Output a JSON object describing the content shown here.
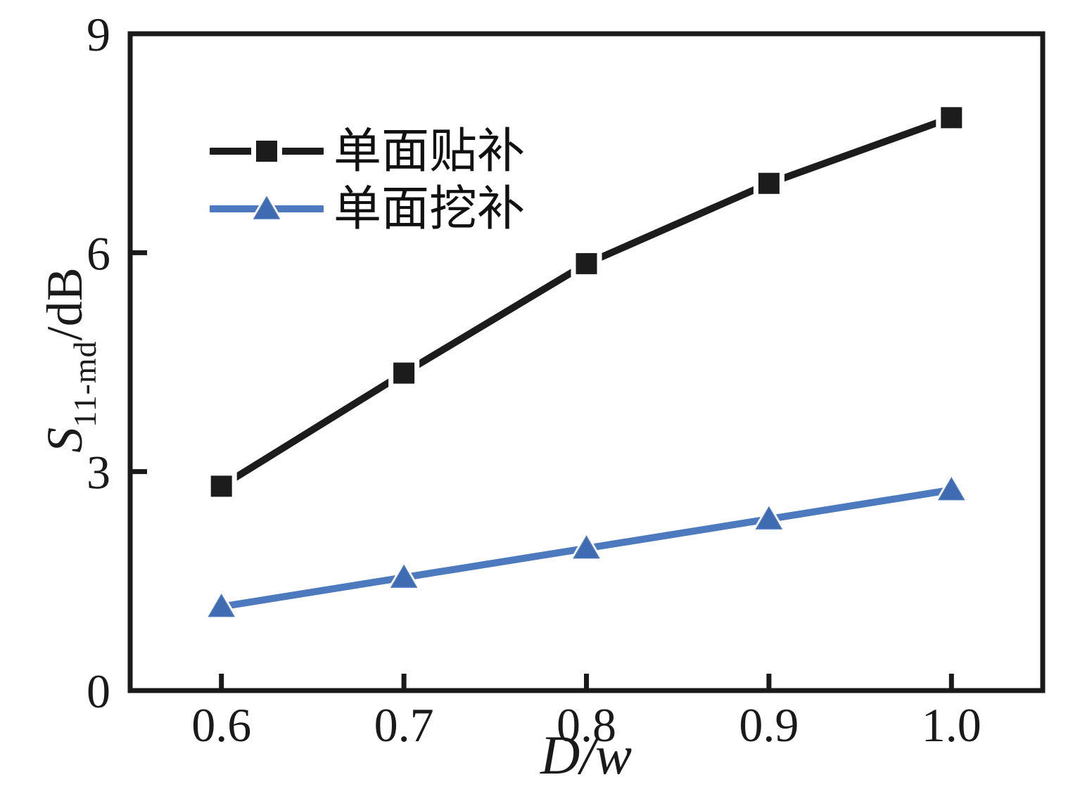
{
  "figure": {
    "background": "#ffffff",
    "axis_color": "#1a1a1a",
    "text_color": "#1a1a1a"
  },
  "chart_data": {
    "type": "line",
    "title": "",
    "xlabel": "D/w",
    "ylabel": {
      "main": "S",
      "sub": "11-md",
      "unit": "/dB",
      "full_text": "S11-md/dB"
    },
    "xlim": [
      0.55,
      1.05
    ],
    "ylim": [
      0,
      9
    ],
    "grid": false,
    "legend_position": "upper-left-inside",
    "xticks": [
      {
        "v": 0.6,
        "label": "0.6"
      },
      {
        "v": 0.7,
        "label": "0.7"
      },
      {
        "v": 0.8,
        "label": "0.8"
      },
      {
        "v": 0.9,
        "label": "0.9"
      },
      {
        "v": 1.0,
        "label": "1.0"
      }
    ],
    "yticks": [
      {
        "v": 0,
        "label": "0"
      },
      {
        "v": 3,
        "label": "3"
      },
      {
        "v": 6,
        "label": "6"
      },
      {
        "v": 9,
        "label": "9"
      }
    ],
    "x": [
      0.6,
      0.7,
      0.8,
      0.9,
      1.0
    ],
    "series": [
      {
        "name": "单面贴补",
        "marker": "square",
        "color": "#1c1c1c",
        "marker_color": "#1c1c1c",
        "values": [
          2.8,
          4.35,
          5.85,
          6.95,
          7.85
        ]
      },
      {
        "name": "单面挖补",
        "marker": "triangle",
        "color": "#4d79be",
        "marker_color": "#3e6bb2",
        "values": [
          1.15,
          1.55,
          1.95,
          2.35,
          2.75
        ]
      }
    ]
  }
}
